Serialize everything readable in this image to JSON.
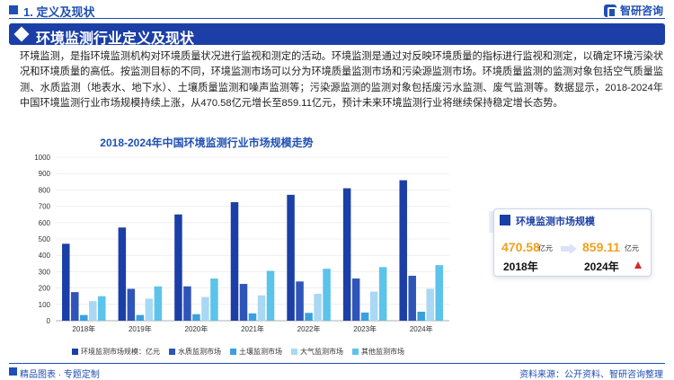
{
  "header": {
    "section": "1. 定义及现状",
    "brand": "智研咨询"
  },
  "banner": {
    "title": "环境监测行业定义及现状"
  },
  "paragraph": "环境监测，是指环境监测机构对环境质量状况进行监视和测定的活动。环境监测是通过对反映环境质量的指标进行监视和测定，以确定环境污染状况和环境质量的高低。按监测目标的不同，环境监测市场可以分为环境质量监测市场和污染源监测市场。环境质量监测的监测对象包括空气质量监测、水质监测（地表水、地下水）、土壤质量监测和噪声监测等；污染源监测的监测对象包括废污水监测、废气监测等。数据显示，2018-2024年中国环境监测行业市场规模持续上涨，从470.58亿元增长至859.11亿元，预计未来环境监测行业将继续保持稳定增长态势。",
  "chart_data": {
    "type": "bar",
    "title": "2018-2024年中国环境监测行业市场规模走势",
    "categories": [
      "2018年",
      "2019年",
      "2020年",
      "2021年",
      "2022年",
      "2023年",
      "2024年"
    ],
    "ylim": [
      0,
      1000
    ],
    "yticks": [
      0,
      100,
      200,
      300,
      400,
      500,
      600,
      700,
      800,
      900,
      1000
    ],
    "legend_position": "bottom",
    "series": [
      {
        "name": "环境监测市场规模：亿元",
        "color": "#1b3fa6",
        "values": [
          470.58,
          570,
          650,
          725,
          770,
          810,
          859.11
        ]
      },
      {
        "name": "水质监测市场",
        "color": "#2f55b8",
        "values": [
          175,
          195,
          210,
          225,
          240,
          258,
          275
        ]
      },
      {
        "name": "土壤监测市场",
        "color": "#3aa0e0",
        "values": [
          35,
          35,
          40,
          45,
          48,
          50,
          55
        ]
      },
      {
        "name": "大气监测市场",
        "color": "#a9d8f5",
        "values": [
          120,
          135,
          145,
          155,
          165,
          178,
          195
        ]
      },
      {
        "name": "其他监测市场",
        "color": "#5cc3ea",
        "values": [
          150,
          210,
          258,
          305,
          318,
          328,
          340
        ]
      }
    ]
  },
  "card": {
    "title": "环境监测市场规模",
    "start_value": "470.58",
    "start_unit": "亿元",
    "start_year": "2018年",
    "end_value": "859.11",
    "end_unit": "亿元",
    "end_year": "2024年",
    "arrow_color": "#d42a2a"
  },
  "footer": {
    "left": "精品图表 · 专题定制",
    "source": "资料来源：公开资料、智研咨询整理"
  }
}
